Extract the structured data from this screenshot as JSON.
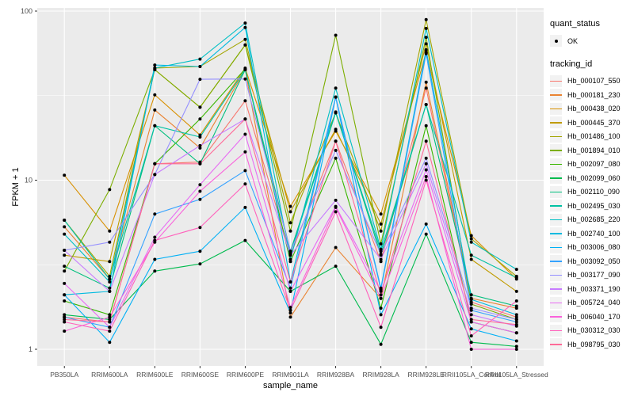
{
  "legend": {
    "quant_title": "quant_status",
    "ok_label": "OK",
    "tracking_title": "tracking_id"
  },
  "chart_data": {
    "type": "line",
    "title": "",
    "xlabel": "sample_name",
    "ylabel": "FPKM + 1",
    "y_scale": "log10",
    "y_ticks": [
      "1",
      "10",
      "100"
    ],
    "ylim": [
      1,
      104
    ],
    "grid": "on",
    "legend_position": "right",
    "panel_bg": "#EBEBEB",
    "grid_color": "#FFFFFF",
    "tick_color": "#333333",
    "tick_label_color": "#4D4D4D",
    "point_color": "#000000",
    "point_legend_label": "OK",
    "categories": [
      "PB350LA",
      "RRIM600LA",
      "RRIM600LE",
      "RRIM600SE",
      "RRIM600PE",
      "RRIM901LA",
      "RRIM928BA",
      "RRIM928LA",
      "RRIM928LE",
      "RRII105LA_Control",
      "RRII105LA_Stressed"
    ],
    "series": [
      {
        "name": "Hb_000107_550",
        "color": "#F8766D",
        "values": [
          1.55,
          1.45,
          12.5,
          12.8,
          29.5,
          3.6,
          17,
          3.3,
          35,
          1.9,
          1.55
        ]
      },
      {
        "name": "Hb_000181_230",
        "color": "#EA8331",
        "values": [
          5.3,
          2.6,
          26,
          15.5,
          45,
          1.55,
          4.0,
          2.0,
          38,
          2.0,
          1.75
        ]
      },
      {
        "name": "Hb_000438_020",
        "color": "#D89000",
        "values": [
          10.7,
          5.0,
          32,
          18.5,
          46,
          7.0,
          19.5,
          6.3,
          57,
          4.7,
          2.6
        ]
      },
      {
        "name": "Hb_000445_370",
        "color": "#C09B00",
        "values": [
          3.6,
          3.3,
          45,
          27,
          63,
          6.5,
          20,
          5.5,
          64,
          3.4,
          2.2
        ]
      },
      {
        "name": "Hb_001486_100",
        "color": "#A3A500",
        "values": [
          5.8,
          2.7,
          46,
          47,
          68,
          5.6,
          25,
          5.0,
          89,
          4.5,
          2.7
        ]
      },
      {
        "name": "Hb_001894_010",
        "color": "#7CAE00",
        "values": [
          2.9,
          8.8,
          45,
          27,
          63,
          5.0,
          72,
          4.2,
          70,
          1.85,
          1.5
        ]
      },
      {
        "name": "Hb_002097_080",
        "color": "#39B600",
        "values": [
          1.93,
          1.6,
          12.5,
          23,
          45.5,
          3.3,
          13.5,
          1.75,
          21,
          1.45,
          1.25
        ]
      },
      {
        "name": "Hb_002099_060",
        "color": "#00BB4E",
        "values": [
          1.6,
          1.5,
          2.9,
          3.2,
          4.4,
          2.2,
          3.1,
          1.07,
          4.8,
          1.1,
          1.04
        ]
      },
      {
        "name": "Hb_002110_090",
        "color": "#00BF7D",
        "values": [
          3.1,
          2.3,
          21,
          12.5,
          45,
          3.8,
          25.3,
          3.6,
          28,
          2.1,
          1.8
        ]
      },
      {
        "name": "Hb_002495_030",
        "color": "#00C1A3",
        "values": [
          5.8,
          2.6,
          21,
          18,
          45,
          3.7,
          25,
          3.8,
          28,
          3.6,
          2.65
        ]
      },
      {
        "name": "Hb_002685_220",
        "color": "#00BFC4",
        "values": [
          4.8,
          2.5,
          46,
          52,
          85,
          3.4,
          35,
          3.9,
          79,
          4.3,
          2.97
        ]
      },
      {
        "name": "Hb_002740_100",
        "color": "#00BAE0",
        "values": [
          2.1,
          2.2,
          48,
          47,
          80,
          2.5,
          31,
          2.3,
          59,
          1.97,
          1.6
        ]
      },
      {
        "name": "Hb_003006_080",
        "color": "#00B0F6",
        "values": [
          2.1,
          1.1,
          3.4,
          3.8,
          6.9,
          1.64,
          31,
          1.6,
          5.5,
          1.32,
          1.12
        ]
      },
      {
        "name": "Hb_003092_050",
        "color": "#35A2FF",
        "values": [
          1.55,
          1.35,
          6.3,
          7.7,
          11.4,
          2.3,
          31,
          2.25,
          56,
          1.7,
          1.45
        ]
      },
      {
        "name": "Hb_003177_090",
        "color": "#9590FF",
        "values": [
          3.85,
          4.3,
          10.8,
          39.5,
          39.7,
          3.8,
          15,
          3.65,
          13.5,
          1.75,
          1.5
        ]
      },
      {
        "name": "Hb_003371_190",
        "color": "#C77CFF",
        "values": [
          3.85,
          2.2,
          10.8,
          16,
          23,
          3.6,
          7.6,
          3.4,
          12.5,
          1.6,
          1.37
        ]
      },
      {
        "name": "Hb_005724_040",
        "color": "#E76BF3",
        "values": [
          2.45,
          1.35,
          4.6,
          9.4,
          18.7,
          2.2,
          7.0,
          2.2,
          11.5,
          1.45,
          1.25
        ]
      },
      {
        "name": "Hb_006040_170",
        "color": "#FA62DB",
        "values": [
          1.28,
          1.55,
          4.3,
          8.6,
          14.7,
          1.77,
          6.9,
          2.0,
          10.5,
          1.0,
          1.0
        ]
      },
      {
        "name": "Hb_030312_030",
        "color": "#FF62BC",
        "values": [
          1.45,
          1.28,
          4.4,
          5.25,
          9.5,
          1.7,
          6.5,
          1.35,
          10,
          1.2,
          1.93
        ]
      },
      {
        "name": "Hb_098795_030",
        "color": "#FF6A98",
        "values": [
          1.5,
          1.45,
          12.5,
          12.5,
          23,
          2.5,
          17,
          2.1,
          17,
          1.5,
          1.4
        ]
      }
    ]
  }
}
